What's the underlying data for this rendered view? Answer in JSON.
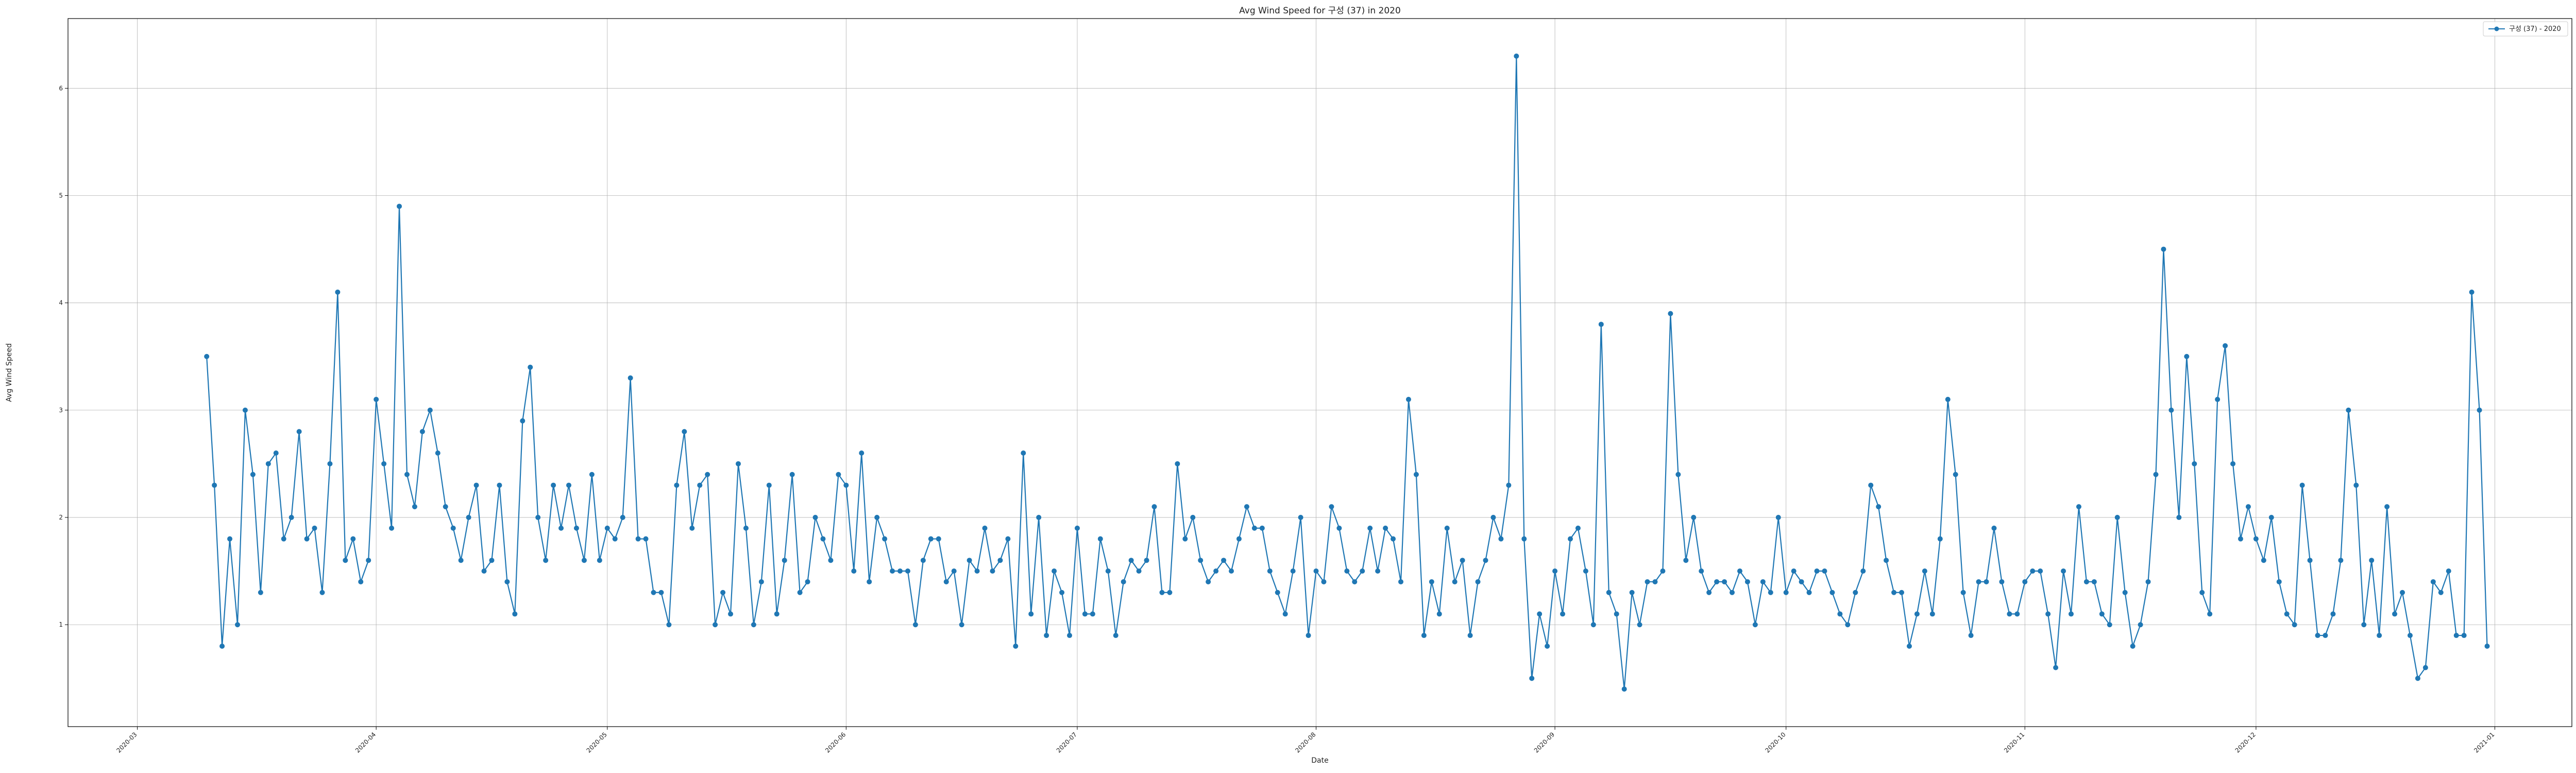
{
  "chart_data": {
    "type": "line",
    "title": "Avg Wind Speed for 구성 (37) in 2020",
    "xlabel": "Date",
    "ylabel": "Avg Wind Speed",
    "x_start": "2020-03-10",
    "x_end": "2020-12-31",
    "xlim": [
      "2020-02-21",
      "2021-01-11"
    ],
    "ylim": [
      0.05,
      6.65
    ],
    "x_ticks": [
      "2020-03",
      "2020-04",
      "2020-05",
      "2020-06",
      "2020-07",
      "2020-08",
      "2020-09",
      "2020-10",
      "2020-11",
      "2020-12",
      "2021-01"
    ],
    "y_ticks": [
      1,
      2,
      3,
      4,
      5,
      6
    ],
    "grid": true,
    "legend_position": "top-right",
    "color": "#1f77b4",
    "series": [
      {
        "name": "구성 (37) - 2020",
        "values": [
          3.5,
          2.3,
          0.8,
          1.8,
          1.0,
          3.0,
          2.4,
          1.3,
          2.5,
          2.6,
          1.8,
          2.0,
          2.8,
          1.8,
          1.9,
          1.3,
          2.5,
          4.1,
          1.6,
          1.8,
          1.4,
          1.6,
          3.1,
          2.5,
          1.9,
          4.9,
          2.4,
          2.1,
          2.8,
          3.0,
          2.6,
          2.1,
          1.9,
          1.6,
          2.0,
          2.3,
          1.5,
          1.6,
          2.3,
          1.4,
          1.1,
          2.9,
          3.4,
          2.0,
          1.6,
          2.3,
          1.9,
          2.3,
          1.9,
          1.6,
          2.4,
          1.6,
          1.9,
          1.8,
          2.0,
          3.3,
          1.8,
          1.8,
          1.3,
          1.3,
          1.0,
          2.3,
          2.8,
          1.9,
          2.3,
          2.4,
          1.0,
          1.3,
          1.1,
          2.5,
          1.9,
          1.0,
          1.4,
          2.3,
          1.1,
          1.6,
          2.4,
          1.3,
          1.4,
          2.0,
          1.8,
          1.6,
          2.4,
          2.3,
          1.5,
          2.6,
          1.4,
          2.0,
          1.8,
          1.5,
          1.5,
          1.5,
          1.0,
          1.6,
          1.8,
          1.8,
          1.4,
          1.5,
          1.0,
          1.6,
          1.5,
          1.9,
          1.5,
          1.6,
          1.8,
          0.8,
          2.6,
          1.1,
          2.0,
          0.9,
          1.5,
          1.3,
          0.9,
          1.9,
          1.1,
          1.1,
          1.8,
          1.5,
          0.9,
          1.4,
          1.6,
          1.5,
          1.6,
          2.1,
          1.3,
          1.3,
          2.5,
          1.8,
          2.0,
          1.6,
          1.4,
          1.5,
          1.6,
          1.5,
          1.8,
          2.1,
          1.9,
          1.9,
          1.5,
          1.3,
          1.1,
          1.5,
          2.0,
          0.9,
          1.5,
          1.4,
          2.1,
          1.9,
          1.5,
          1.4,
          1.5,
          1.9,
          1.5,
          1.9,
          1.8,
          1.4,
          3.1,
          2.4,
          0.9,
          1.4,
          1.1,
          1.9,
          1.4,
          1.6,
          0.9,
          1.4,
          1.6,
          2.0,
          1.8,
          2.3,
          6.3,
          1.8,
          0.5,
          1.1,
          0.8,
          1.5,
          1.1,
          1.8,
          1.9,
          1.5,
          1.0,
          3.8,
          1.3,
          1.1,
          0.4,
          1.3,
          1.0,
          1.4,
          1.4,
          1.5,
          3.9,
          2.4,
          1.6,
          2.0,
          1.5,
          1.3,
          1.4,
          1.4,
          1.3,
          1.5,
          1.4,
          1.0,
          1.4,
          1.3,
          2.0,
          1.3,
          1.5,
          1.4,
          1.3,
          1.5,
          1.5,
          1.3,
          1.1,
          1.0,
          1.3,
          1.5,
          2.3,
          2.1,
          1.6,
          1.3,
          1.3,
          0.8,
          1.1,
          1.5,
          1.1,
          1.8,
          3.1,
          2.4,
          1.3,
          0.9,
          1.4,
          1.4,
          1.9,
          1.4,
          1.1,
          1.1,
          1.4,
          1.5,
          1.5,
          1.1,
          0.6,
          1.5,
          1.1,
          2.1,
          1.4,
          1.4,
          1.1,
          1.0,
          2.0,
          1.3,
          0.8,
          1.0,
          1.4,
          2.4,
          4.5,
          3.0,
          2.0,
          3.5,
          2.5,
          1.3,
          1.1,
          3.1,
          3.6,
          2.5,
          1.8,
          2.1,
          1.8,
          1.6,
          2.0,
          1.4,
          1.1,
          1.0,
          2.3,
          1.6,
          0.9,
          0.9,
          1.1,
          1.6,
          3.0,
          2.3,
          1.0,
          1.6,
          0.9,
          2.1,
          1.1,
          1.3,
          0.9,
          0.5,
          0.6,
          1.4,
          1.3,
          1.5,
          0.9,
          0.9,
          4.1,
          3.0,
          0.8
        ]
      }
    ]
  }
}
